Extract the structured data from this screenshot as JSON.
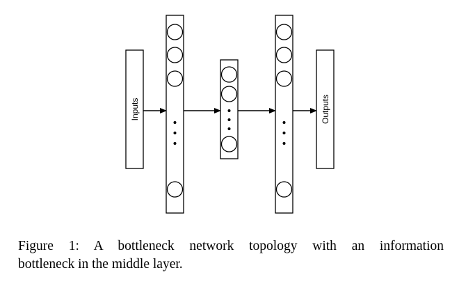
{
  "diagram": {
    "inputs_label": "Inputs",
    "outputs_label": "Outputs"
  },
  "caption": {
    "line1": "Figure 1: A bottleneck network topology with an information",
    "line2": "bottleneck in the middle layer."
  }
}
